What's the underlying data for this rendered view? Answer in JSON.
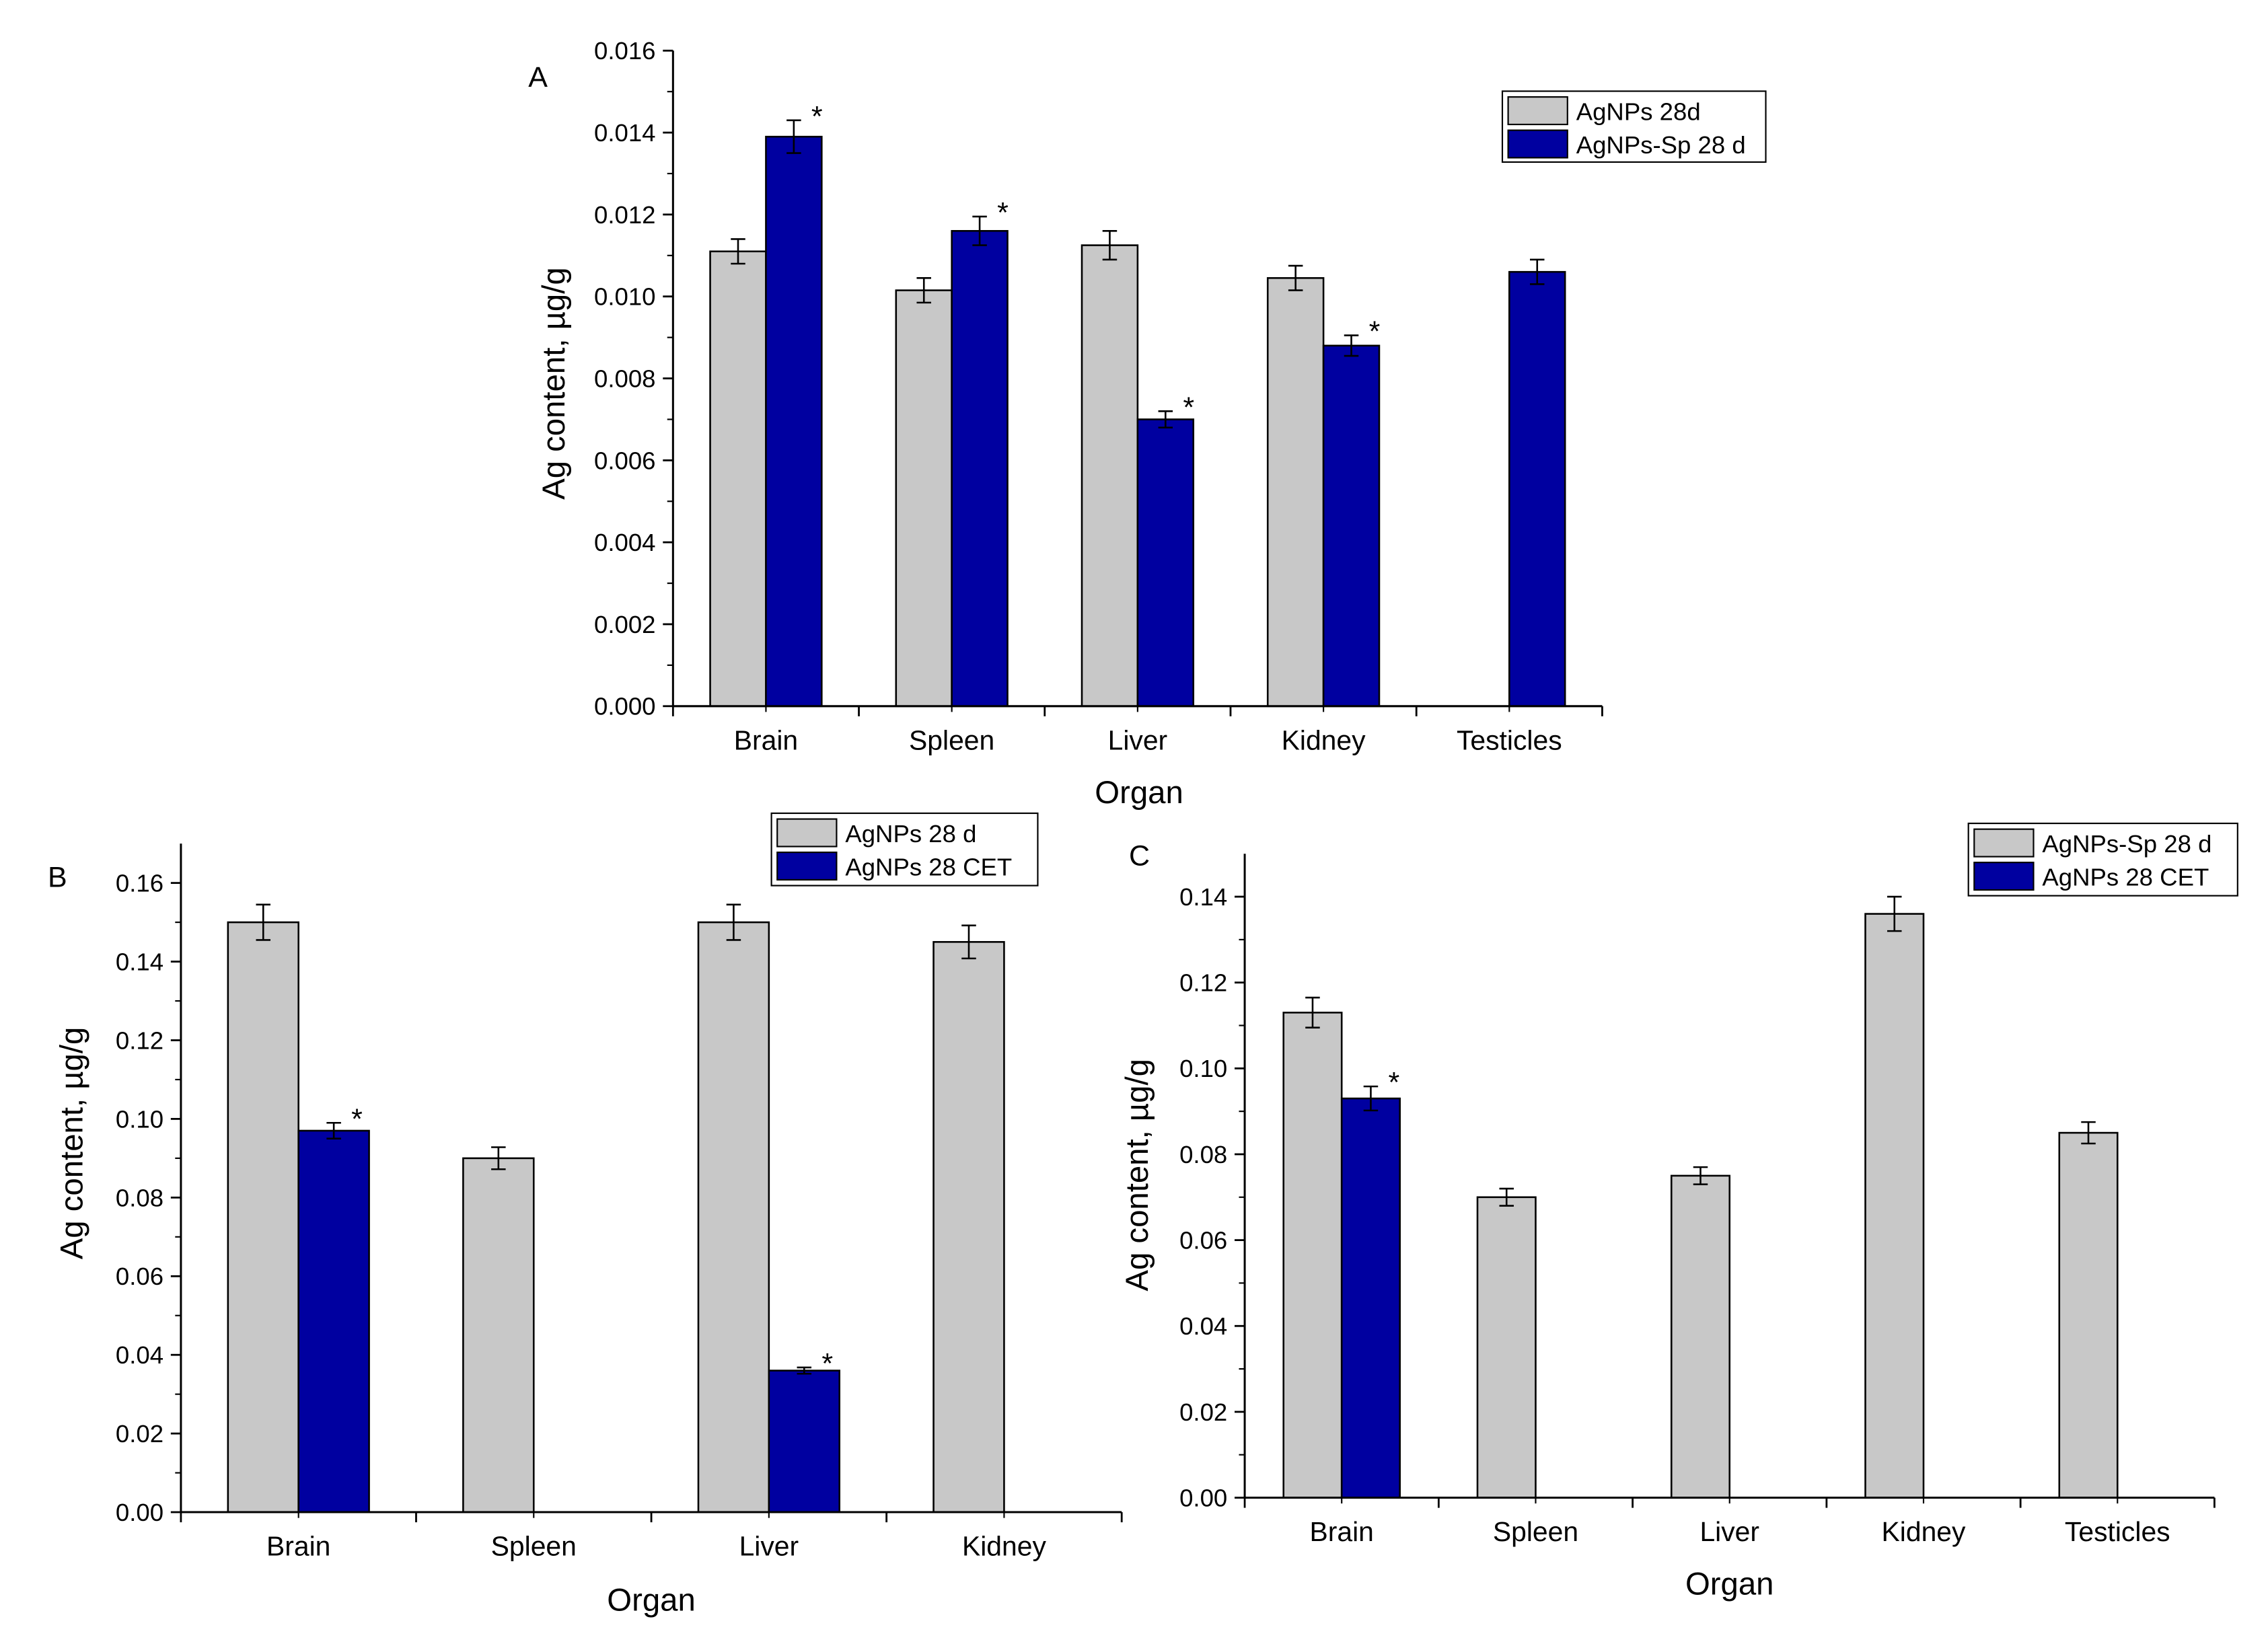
{
  "figure": {
    "description_panels": [
      "A",
      "B",
      "C"
    ]
  },
  "colors": {
    "gray": "#c8c8c8",
    "blue": "#0000a0",
    "border": "#000000"
  },
  "chart_data": [
    {
      "panel_label": "A",
      "type": "bar",
      "categories": [
        "Brain",
        "Spleen",
        "Liver",
        "Kidney",
        "Testicles"
      ],
      "series": [
        {
          "name": "AgNPs 28d",
          "color": "gray",
          "values": [
            0.0111,
            0.01015,
            0.01125,
            0.01045,
            null
          ],
          "errors": [
            0.0003,
            0.0003,
            0.00035,
            0.0003,
            null
          ]
        },
        {
          "name": "AgNPs-Sp 28 d",
          "color": "blue",
          "values": [
            0.0139,
            0.0116,
            0.007,
            0.0088,
            0.0106
          ],
          "errors": [
            0.0004,
            0.00035,
            0.0002,
            0.00025,
            0.0003
          ]
        }
      ],
      "significance": [
        {
          "series": 1,
          "index": 0,
          "mark": "*"
        },
        {
          "series": 1,
          "index": 1,
          "mark": "*"
        },
        {
          "series": 1,
          "index": 2,
          "mark": "*"
        },
        {
          "series": 1,
          "index": 3,
          "mark": "*"
        }
      ],
      "xlabel": "Organ",
      "ylabel": "Ag content, µg/g",
      "ylim": [
        0,
        0.016
      ],
      "yticks": [
        "0.000",
        "0.002",
        "0.004",
        "0.006",
        "0.008",
        "0.010",
        "0.012",
        "0.014",
        "0.016"
      ],
      "legend_position": "top-right"
    },
    {
      "panel_label": "B",
      "type": "bar",
      "categories": [
        "Brain",
        "Spleen",
        "Liver",
        "Kidney"
      ],
      "series": [
        {
          "name": "AgNPs 28 d",
          "color": "gray",
          "values": [
            0.15,
            0.09,
            0.15,
            0.145
          ],
          "errors": [
            0.0045,
            0.0028,
            0.0045,
            0.0042
          ]
        },
        {
          "name": "AgNPs 28 CET",
          "color": "blue",
          "values": [
            0.097,
            null,
            0.036,
            null
          ],
          "errors": [
            0.002,
            null,
            0.0008,
            null
          ]
        }
      ],
      "significance": [
        {
          "series": 1,
          "index": 0,
          "mark": "*"
        },
        {
          "series": 1,
          "index": 2,
          "mark": "*"
        }
      ],
      "xlabel": "Organ",
      "ylabel": "Ag content, µg/g",
      "ylim": [
        0,
        0.17
      ],
      "yticks": [
        "0.00",
        "0.02",
        "0.04",
        "0.06",
        "0.08",
        "0.10",
        "0.12",
        "0.14",
        "0.16"
      ],
      "legend_position": "top-right"
    },
    {
      "panel_label": "C",
      "type": "bar",
      "categories": [
        "Brain",
        "Spleen",
        "Liver",
        "Kidney",
        "Testicles"
      ],
      "series": [
        {
          "name": "AgNPs-Sp 28 d",
          "color": "gray",
          "values": [
            0.113,
            0.07,
            0.075,
            0.136,
            0.085
          ],
          "errors": [
            0.0035,
            0.002,
            0.002,
            0.004,
            0.0025
          ]
        },
        {
          "name": "AgNPs 28 CET",
          "color": "blue",
          "values": [
            0.093,
            null,
            null,
            null,
            null
          ],
          "errors": [
            0.0028,
            null,
            null,
            null,
            null
          ]
        }
      ],
      "significance": [
        {
          "series": 1,
          "index": 0,
          "mark": "*"
        }
      ],
      "xlabel": "Organ",
      "ylabel": "Ag content, µg/g",
      "ylim": [
        0,
        0.15
      ],
      "yticks": [
        "0.00",
        "0.02",
        "0.04",
        "0.06",
        "0.08",
        "0.10",
        "0.12",
        "0.14"
      ],
      "legend_position": "top-right"
    }
  ]
}
